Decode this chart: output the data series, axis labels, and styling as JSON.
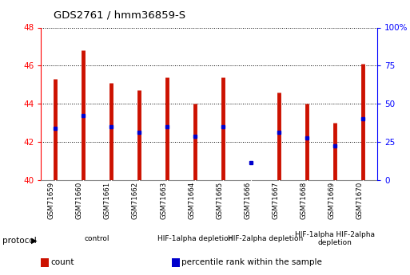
{
  "title": "GDS2761 / hmm36859-S",
  "samples": [
    "GSM71659",
    "GSM71660",
    "GSM71661",
    "GSM71662",
    "GSM71663",
    "GSM71664",
    "GSM71665",
    "GSM71666",
    "GSM71667",
    "GSM71668",
    "GSM71669",
    "GSM71670"
  ],
  "count_bottom": [
    40,
    40,
    40,
    40,
    40,
    40,
    40,
    40.4,
    40,
    40,
    40,
    40
  ],
  "count_top": [
    45.3,
    46.8,
    45.1,
    44.7,
    45.4,
    44.0,
    45.4,
    40.4,
    44.6,
    44.0,
    43.0,
    46.1
  ],
  "percentile": [
    42.7,
    43.4,
    42.8,
    42.5,
    42.8,
    42.3,
    42.8,
    40.9,
    42.5,
    42.2,
    41.8,
    43.2
  ],
  "ylim_left": [
    40,
    48
  ],
  "yticks_left": [
    40,
    42,
    44,
    46,
    48
  ],
  "ylim_right": [
    0,
    100
  ],
  "yticks_right": [
    0,
    25,
    50,
    75,
    100
  ],
  "ytick_labels_right": [
    "0",
    "25",
    "50",
    "75",
    "100%"
  ],
  "groups": [
    {
      "label": "control",
      "indices": [
        0,
        1,
        2,
        3
      ],
      "color": "#d0ecd0"
    },
    {
      "label": "HIF-1alpha depletion",
      "indices": [
        4,
        5,
        6
      ],
      "color": "#d0ecd0"
    },
    {
      "label": "HIF-2alpha depletion",
      "indices": [
        7,
        8
      ],
      "color": "#88dd88"
    },
    {
      "label": "HIF-1alpha HIF-2alpha\ndepletion",
      "indices": [
        9,
        10,
        11
      ],
      "color": "#44cc44"
    }
  ],
  "bar_color": "#cc1100",
  "dot_color": "#0000cc",
  "tick_area_color": "#cccccc",
  "bg_color": "#ffffff",
  "legend_items": [
    {
      "label": "count",
      "color": "#cc1100"
    },
    {
      "label": "percentile rank within the sample",
      "color": "#0000cc"
    }
  ]
}
